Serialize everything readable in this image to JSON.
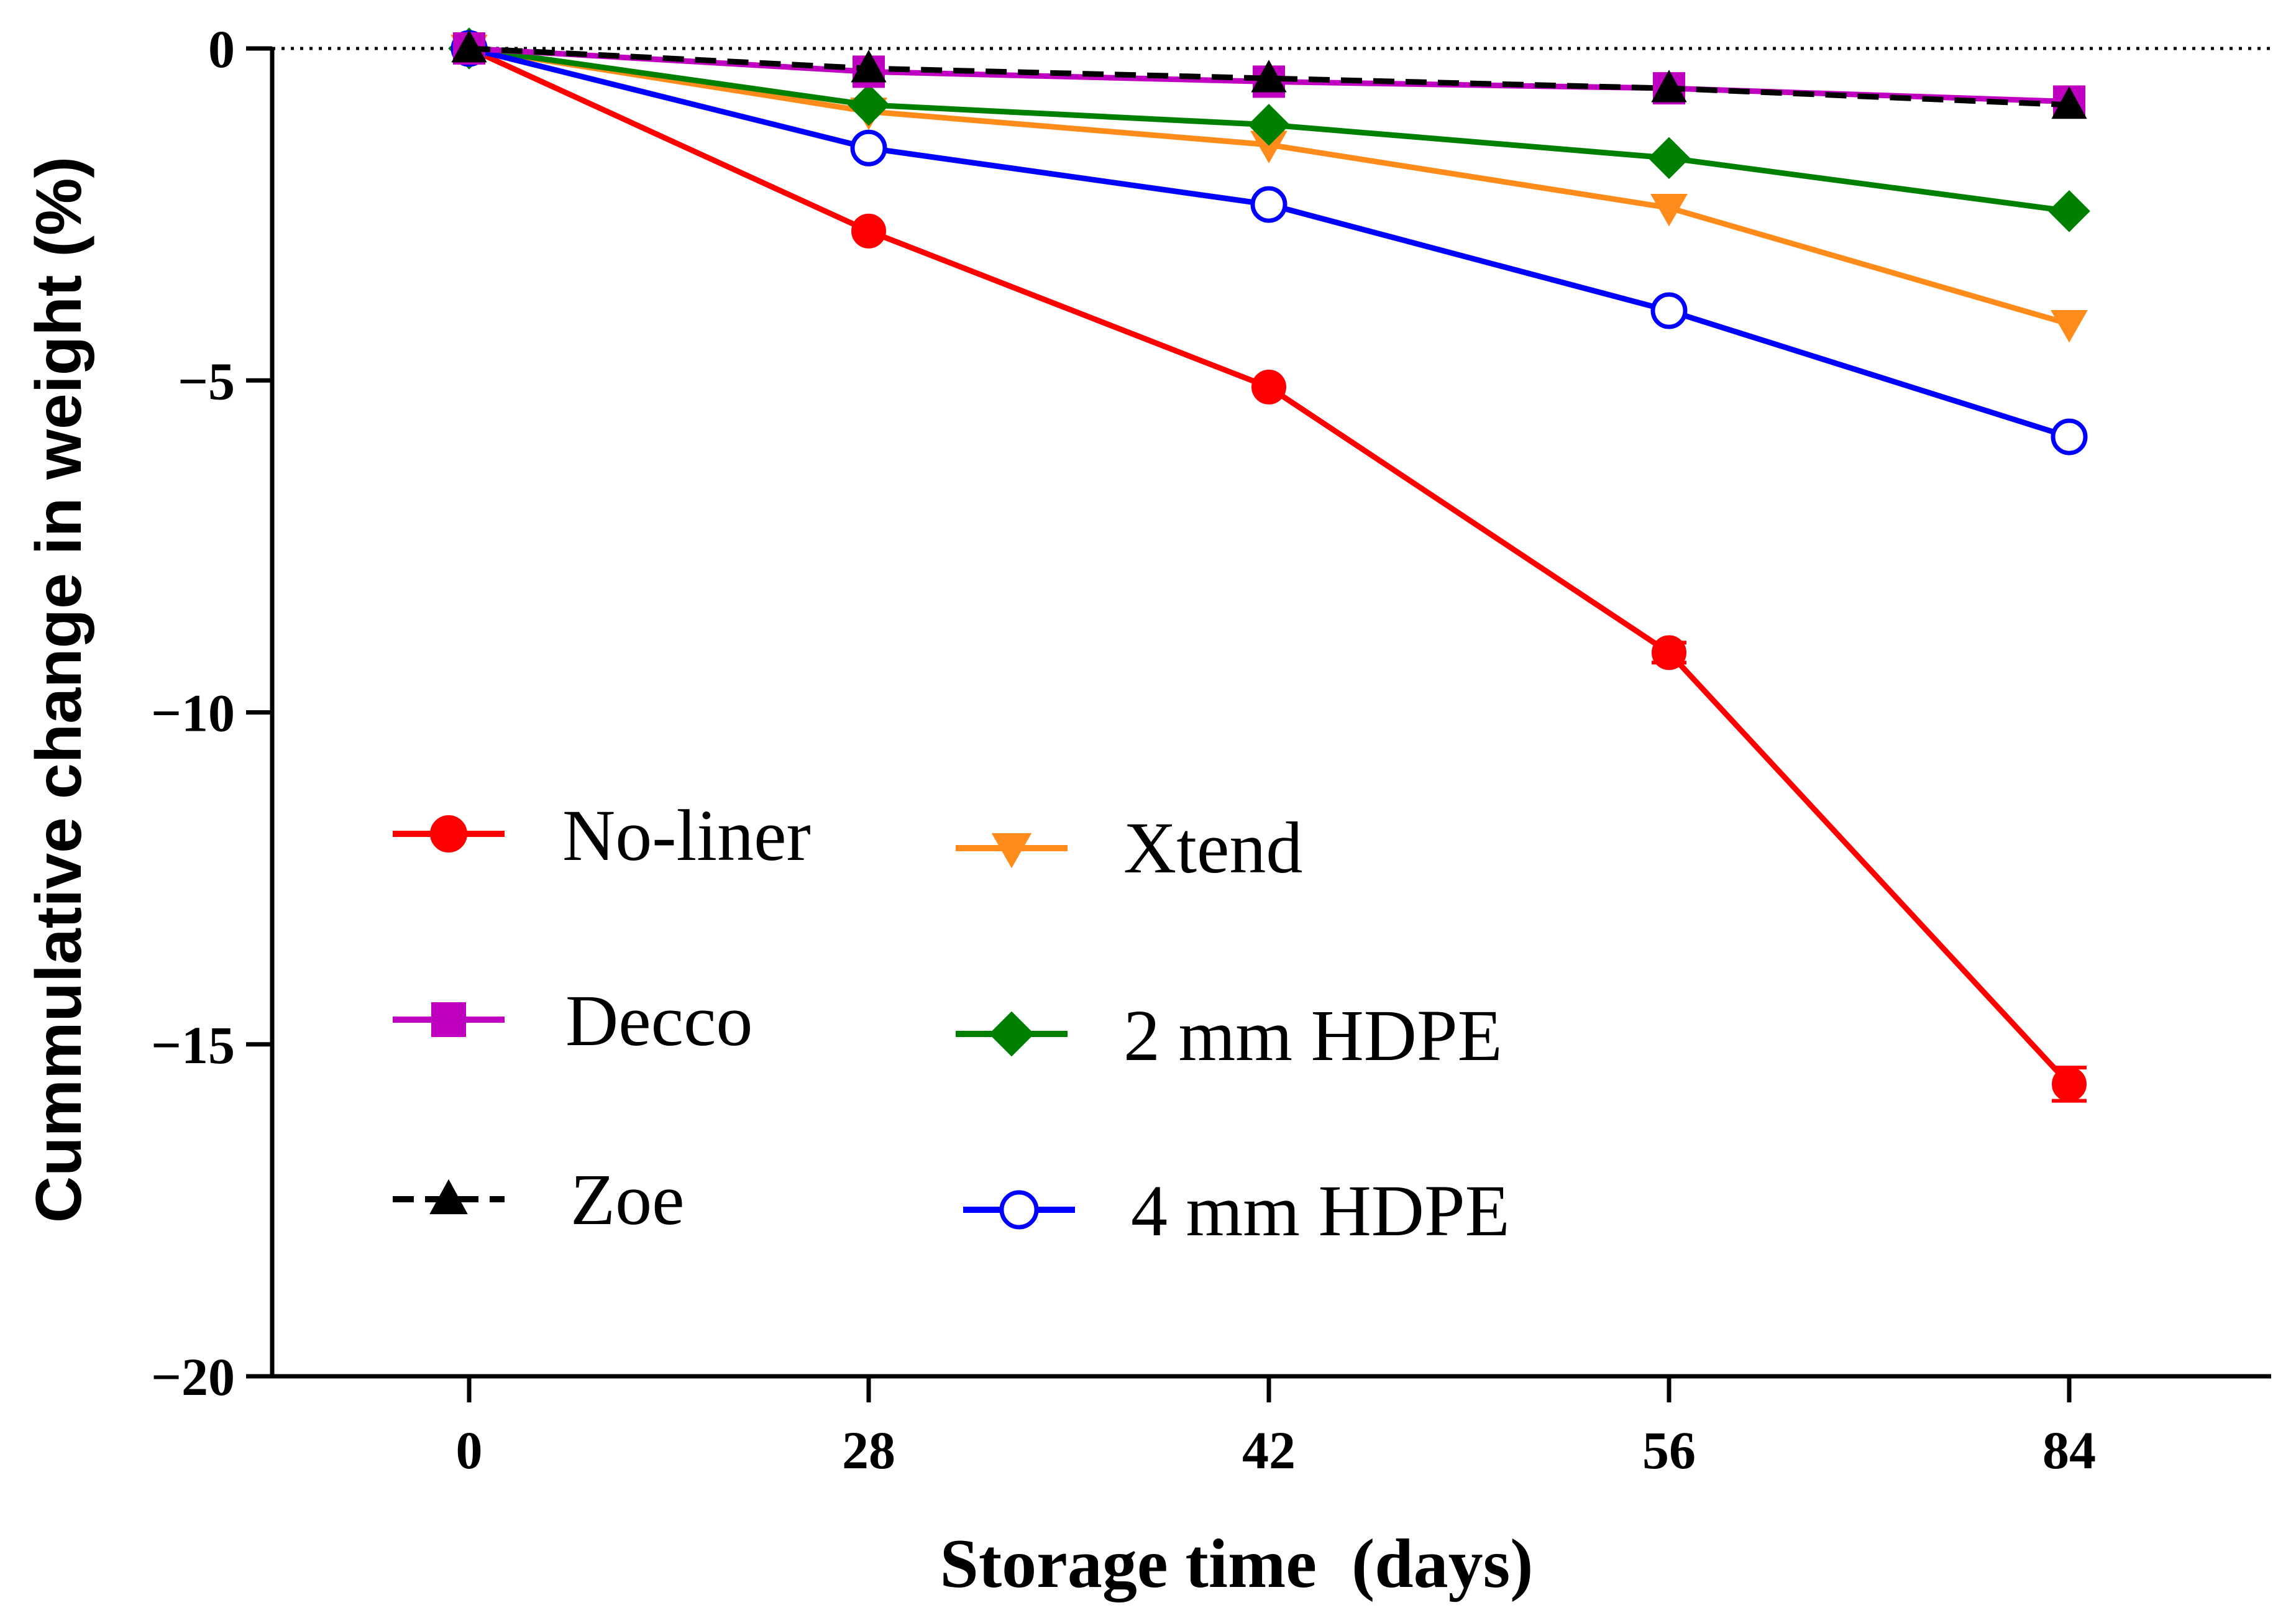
{
  "chart_data": {
    "type": "line",
    "title": "",
    "xlabel": "Storage time  (days)",
    "ylabel": "Cummulative change in weight  (%)",
    "x": [
      0,
      28,
      42,
      56,
      84
    ],
    "x_tick_labels": [
      "0",
      "28",
      "42",
      "56",
      "84"
    ],
    "y_ticks": [
      0,
      -5,
      -10,
      -15,
      -20
    ],
    "y_tick_labels": [
      "0",
      "−5",
      "−10",
      "−15",
      "−20"
    ],
    "ylim": [
      -20,
      0
    ],
    "grid": false,
    "reference_line": {
      "y": 0,
      "style": "dotted"
    },
    "legend_position": "lower-left",
    "series": [
      {
        "name": "No-liner",
        "color": "#ff0000",
        "marker": "circle-filled",
        "dash": "solid",
        "values": [
          0,
          -2.75,
          -5.1,
          -9.1,
          -15.6
        ],
        "error": [
          0,
          0.1,
          0.1,
          0.15,
          0.25
        ]
      },
      {
        "name": "Decco",
        "color": "#c000c0",
        "marker": "square",
        "dash": "solid",
        "values": [
          0,
          -0.35,
          -0.5,
          -0.6,
          -0.8
        ],
        "error": [
          0,
          0,
          0,
          0,
          0
        ]
      },
      {
        "name": "Zoe",
        "color": "#000000",
        "marker": "triangle-up",
        "dash": "dashed",
        "values": [
          0,
          -0.3,
          -0.45,
          -0.6,
          -0.85
        ],
        "error": [
          0,
          0,
          0,
          0,
          0
        ]
      },
      {
        "name": "Xtend",
        "color": "#ff8c1a",
        "marker": "triangle-down",
        "dash": "solid",
        "values": [
          0,
          -0.95,
          -1.45,
          -2.4,
          -4.15
        ],
        "error": [
          0,
          0,
          0,
          0,
          0
        ]
      },
      {
        "name": "2 mm HDPE",
        "color": "#008000",
        "marker": "diamond",
        "dash": "solid",
        "values": [
          0,
          -0.85,
          -1.15,
          -1.65,
          -2.45
        ],
        "error": [
          0,
          0,
          0,
          0,
          0
        ]
      },
      {
        "name": "4 mm HDPE",
        "color": "#0000ff",
        "marker": "circle-open",
        "dash": "solid",
        "values": [
          0,
          -1.5,
          -2.35,
          -3.95,
          -5.85
        ],
        "error": [
          0,
          0,
          0,
          0,
          0
        ]
      }
    ],
    "legend_order": [
      "No-liner",
      "Decco",
      "Zoe",
      "Xtend",
      "2 mm HDPE",
      "4 mm HDPE"
    ]
  }
}
